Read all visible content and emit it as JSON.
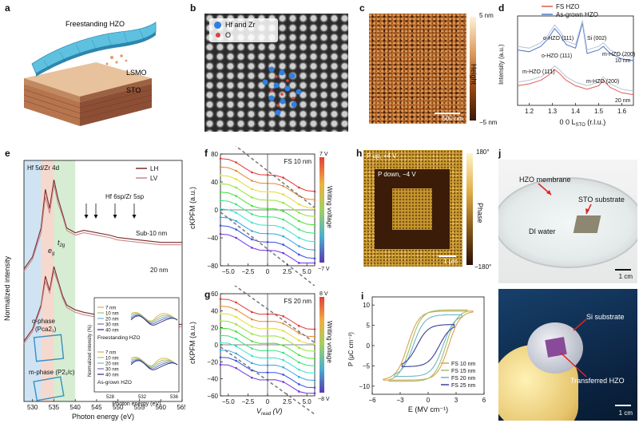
{
  "panels": {
    "a": {
      "label": "a",
      "title": "Freestanding HZO",
      "layer1": "LSMO",
      "layer2": "STO"
    },
    "b": {
      "label": "b",
      "legend_hf": "Hf and Zr",
      "legend_o": "O"
    },
    "c": {
      "label": "c",
      "scale": "500 nm",
      "cb_top": "5 nm",
      "cb_bottom": "−5 nm",
      "cb_title": "Height"
    },
    "d": {
      "label": "d",
      "legend": [
        "FS HZO",
        "As-grown HZO"
      ],
      "ylabel": "Intensity (a.u.)",
      "xlabel": "0 0 L",
      "xlabel_sub": "STO",
      "xlabel_unit": " (r.l.u.)",
      "ticks": [
        "1.2",
        "1.3",
        "1.4",
        "1.5",
        "1.6"
      ],
      "ann": [
        "o-HZO (111)",
        "Si (002)",
        "m-HZO (200)",
        "o-HZO (111)",
        "10 nm",
        "m-HZO (11̄1)",
        "m-HZO (200)",
        "20 nm"
      ]
    },
    "e": {
      "label": "e",
      "ylabel": "Normalized intensity",
      "xlabel": "Photon energy (eV)",
      "ticks": [
        "530",
        "535",
        "540",
        "545",
        "550",
        "555",
        "560",
        "565"
      ],
      "legend": [
        "LH",
        "LV"
      ],
      "edge_left": "Hf 5d/Zr 4d",
      "edge_right": "Hf 6sp/Zr 5sp",
      "sub10": "Sub-10 nm",
      "nm20": "20 nm",
      "eg": "e",
      "eg_sub": "g",
      "t2g": "t",
      "t2g_sub": "2g",
      "ophase": "o-phase",
      "ophase_sg": "(Pca2₁)",
      "mphase": "m-phase (P2₁/c)",
      "inset": {
        "ylabel": "Normalized intensity (%)",
        "xlabel": "Photon energy (eV)",
        "ticks": [
          "528",
          "532",
          "536"
        ],
        "top_title": "Freestanding HZO",
        "bottom_title": "As-grown HZO",
        "top_legend": [
          "7 nm",
          "10 nm",
          "20 nm",
          "30 nm",
          "40 nm"
        ],
        "bottom_legend": [
          "7 nm",
          "10 nm",
          "20 nm",
          "30 nm",
          "40 nm"
        ]
      }
    },
    "f": {
      "label": "f",
      "title": "FS 10 nm",
      "ylabel": "cKPFM (a.u.)",
      "yticks": [
        "80",
        "40",
        "0",
        "−40",
        "−80"
      ],
      "xticks": [
        "−5.0",
        "−2.5",
        "0",
        "2.5",
        "5.0"
      ],
      "cb_top": "7 V",
      "cb_bottom": "−7 V",
      "cb_title": "Writing voltage"
    },
    "g": {
      "label": "g",
      "title": "FS 20 nm",
      "ylabel": "cKPFM (a.u.)",
      "yticks": [
        "60",
        "40",
        "20",
        "0",
        "−20",
        "−40",
        "−60"
      ],
      "xticks": [
        "−5.0",
        "−2.5",
        "0",
        "2.5",
        "5.0"
      ],
      "xlabel": "V",
      "xlabel_sub": "read",
      "xlabel_unit": " (V)",
      "cb_top": "8 V",
      "cb_bottom": "−8 V",
      "cb_title": "Writing voltage"
    },
    "h": {
      "label": "h",
      "pup": "P up, +4 V",
      "pdown": "P down, −4 V",
      "scale": "1 μm",
      "cb_top": "180°",
      "cb_bottom": "−180°",
      "cb_title": "Phase"
    },
    "i": {
      "label": "i",
      "ylabel": "P (μC cm⁻²)",
      "xlabel": "E (MV cm⁻¹)",
      "yticks": [
        "10",
        "5",
        "0",
        "−5",
        "−10"
      ],
      "xticks": [
        "−6",
        "−3",
        "0",
        "3",
        "6"
      ],
      "legend": [
        "FS 10 nm",
        "FS 15 nm",
        "FS 20 nm",
        "FS 25 nm"
      ]
    },
    "j": {
      "label": "j",
      "membrane": "HZO membrane",
      "substrate": "STO substrate",
      "water": "DI water",
      "scale1": "1 cm",
      "si": "Si substrate",
      "transferred": "Transferred HZO",
      "scale2": "1 cm"
    }
  },
  "chart_data": [
    {
      "type": "line",
      "panel": "d",
      "xlabel": "0 0 L_STO (r.l.u.)",
      "ylabel": "Intensity (a.u.)",
      "xlim": [
        1.15,
        1.65
      ],
      "series": [
        {
          "name": "FS HZO",
          "x": [
            1.15,
            1.2,
            1.25,
            1.28,
            1.31,
            1.33,
            1.36,
            1.4,
            1.43,
            1.45,
            1.5,
            1.52,
            1.55,
            1.6,
            1.65
          ],
          "y": [
            0.62,
            0.6,
            0.66,
            0.74,
            0.86,
            0.8,
            0.68,
            0.64,
            0.92,
            0.58,
            0.62,
            0.66,
            0.58,
            0.52,
            0.5
          ]
        },
        {
          "name": "As-grown HZO",
          "x": [
            1.15,
            1.2,
            1.25,
            1.28,
            1.31,
            1.33,
            1.36,
            1.4,
            1.43,
            1.45,
            1.5,
            1.52,
            1.55,
            1.6,
            1.65
          ],
          "y": [
            0.66,
            0.64,
            0.7,
            0.78,
            0.9,
            0.84,
            0.72,
            0.68,
            0.95,
            0.62,
            0.66,
            0.7,
            0.62,
            0.56,
            0.54
          ]
        },
        {
          "name": "FS HZO",
          "x": [
            1.15,
            1.2,
            1.25,
            1.28,
            1.31,
            1.33,
            1.36,
            1.4,
            1.45,
            1.5,
            1.52,
            1.55,
            1.6,
            1.65
          ],
          "y": [
            0.22,
            0.24,
            0.28,
            0.33,
            0.4,
            0.36,
            0.28,
            0.22,
            0.18,
            0.22,
            0.28,
            0.2,
            0.14,
            0.12
          ]
        },
        {
          "name": "As-grown HZO",
          "x": [
            1.15,
            1.2,
            1.25,
            1.28,
            1.31,
            1.33,
            1.36,
            1.4,
            1.45,
            1.5,
            1.52,
            1.55,
            1.6,
            1.65
          ],
          "y": [
            0.26,
            0.28,
            0.32,
            0.37,
            0.44,
            0.4,
            0.32,
            0.26,
            0.22,
            0.26,
            0.32,
            0.24,
            0.18,
            0.16
          ]
        }
      ]
    },
    {
      "type": "line",
      "panel": "e",
      "xlabel": "Photon energy (eV)",
      "ylabel": "Normalized intensity",
      "xlim": [
        528,
        565
      ],
      "series": [
        {
          "name": "LH",
          "x": [
            528,
            530,
            532,
            533,
            534,
            535,
            536,
            537,
            538,
            540,
            542,
            545,
            548,
            550,
            555,
            560,
            565
          ],
          "y": [
            0.55,
            0.6,
            0.72,
            0.88,
            0.8,
            0.92,
            0.84,
            0.78,
            0.72,
            0.7,
            0.71,
            0.7,
            0.69,
            0.68,
            0.67,
            0.66,
            0.66
          ]
        },
        {
          "name": "LV",
          "x": [
            528,
            530,
            532,
            533,
            534,
            535,
            536,
            537,
            538,
            540,
            542,
            545,
            548,
            550,
            555,
            560,
            565
          ],
          "y": [
            0.54,
            0.59,
            0.7,
            0.85,
            0.78,
            0.9,
            0.82,
            0.77,
            0.71,
            0.69,
            0.7,
            0.69,
            0.68,
            0.67,
            0.66,
            0.65,
            0.65
          ]
        },
        {
          "name": "LH",
          "x": [
            528,
            530,
            532,
            533,
            534,
            535,
            536,
            537,
            538,
            540,
            542,
            545,
            548,
            550,
            555,
            560,
            565
          ],
          "y": [
            0.25,
            0.3,
            0.4,
            0.52,
            0.46,
            0.56,
            0.5,
            0.44,
            0.4,
            0.38,
            0.37,
            0.36,
            0.35,
            0.34,
            0.33,
            0.32,
            0.32
          ]
        },
        {
          "name": "LV",
          "x": [
            528,
            530,
            532,
            533,
            534,
            535,
            536,
            537,
            538,
            540,
            542,
            545,
            548,
            550,
            555,
            560,
            565
          ],
          "y": [
            0.24,
            0.29,
            0.39,
            0.5,
            0.45,
            0.54,
            0.49,
            0.43,
            0.39,
            0.37,
            0.36,
            0.35,
            0.34,
            0.33,
            0.32,
            0.31,
            0.31
          ]
        }
      ]
    },
    {
      "type": "line",
      "panel": "f",
      "xlabel": "V_read (V)",
      "ylabel": "cKPFM (a.u.)",
      "xlim": [
        -6,
        6
      ],
      "ylim": [
        -80,
        80
      ],
      "colorbar": [
        "7 V",
        "−7 V"
      ],
      "series_offsets": [
        50,
        38,
        26,
        14,
        2,
        -10,
        -22,
        -34,
        -46,
        -58
      ]
    },
    {
      "type": "line",
      "panel": "g",
      "xlabel": "V_read (V)",
      "ylabel": "cKPFM (a.u.)",
      "xlim": [
        -6,
        6
      ],
      "ylim": [
        -70,
        70
      ],
      "colorbar": [
        "8 V",
        "−8 V"
      ],
      "series_offsets": [
        42,
        32,
        22,
        12,
        2,
        -8,
        -18,
        -28,
        -38,
        -48
      ]
    },
    {
      "type": "line",
      "panel": "i",
      "xlabel": "E (MV cm⁻¹)",
      "ylabel": "P (μC cm⁻²)",
      "xlim": [
        -6,
        6
      ],
      "ylim": [
        -12,
        12
      ],
      "series": [
        {
          "name": "FS 10 nm",
          "emax": 4.8,
          "pmax": 8.5,
          "ec": 2.2
        },
        {
          "name": "FS 15 nm",
          "emax": 4.2,
          "pmax": 8.8,
          "ec": 1.9
        },
        {
          "name": "FS 20 nm",
          "emax": 3.6,
          "pmax": 7.6,
          "ec": 1.6
        },
        {
          "name": "FS 25 nm",
          "emax": 2.8,
          "pmax": 5.2,
          "ec": 1.2
        }
      ]
    }
  ],
  "colors": {
    "fs": "#e25b52",
    "asgrown": "#4e78c4",
    "lh": "#7a2a2a",
    "lv": "#c9898a",
    "i_series": [
      "#d8a24a",
      "#9fc06a",
      "#6db5c9",
      "#3c3f9c"
    ]
  }
}
